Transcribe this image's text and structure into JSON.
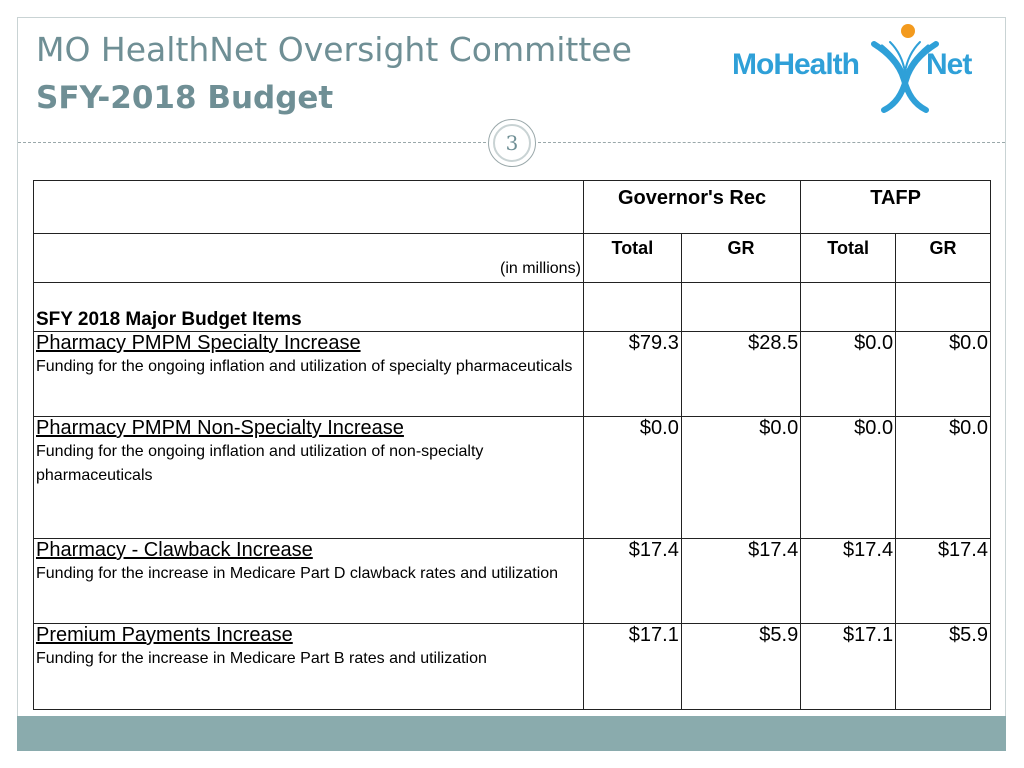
{
  "header": {
    "title_line1": "MO HealthNet Oversight Committee",
    "title_line2": "SFY-2018 Budget",
    "page_number": "3"
  },
  "logo": {
    "text_left": "MoHealth",
    "text_right": "Net",
    "colors": {
      "blue": "#2fa0d8",
      "orange": "#f39a1e"
    }
  },
  "table": {
    "group_headers": [
      "Governor's Rec",
      "TAFP"
    ],
    "sub_headers": [
      "Total",
      "GR",
      "Total",
      "GR"
    ],
    "units_note": "(in millions)",
    "section_title": "SFY 2018 Major Budget Items",
    "rows": [
      {
        "title": "Pharmacy PMPM Specialty Increase",
        "description": "Funding for the ongoing inflation and utilization of specialty pharmaceuticals",
        "gov_total": "$79.3",
        "gov_gr": "$28.5",
        "tafp_total": "$0.0",
        "tafp_gr": "$0.0"
      },
      {
        "title": "Pharmacy PMPM Non-Specialty Increase",
        "description": "Funding for the ongoing inflation and utilization of non-specialty pharmaceuticals",
        "gov_total": "$0.0",
        "gov_gr": "$0.0",
        "tafp_total": "$0.0",
        "tafp_gr": "$0.0"
      },
      {
        "title": "Pharmacy - Clawback Increase",
        "description": "Funding for the increase in Medicare Part D clawback rates and utilization",
        "gov_total": "$17.4",
        "gov_gr": "$17.4",
        "tafp_total": "$17.4",
        "tafp_gr": "$17.4"
      },
      {
        "title": "Premium Payments Increase",
        "description": "Funding for the increase in Medicare Part B rates and utilization",
        "gov_total": "$17.1",
        "gov_gr": "$5.9",
        "tafp_total": "$17.1",
        "tafp_gr": "$5.9"
      }
    ]
  },
  "footer": {
    "bar_color": "#8aabad"
  }
}
